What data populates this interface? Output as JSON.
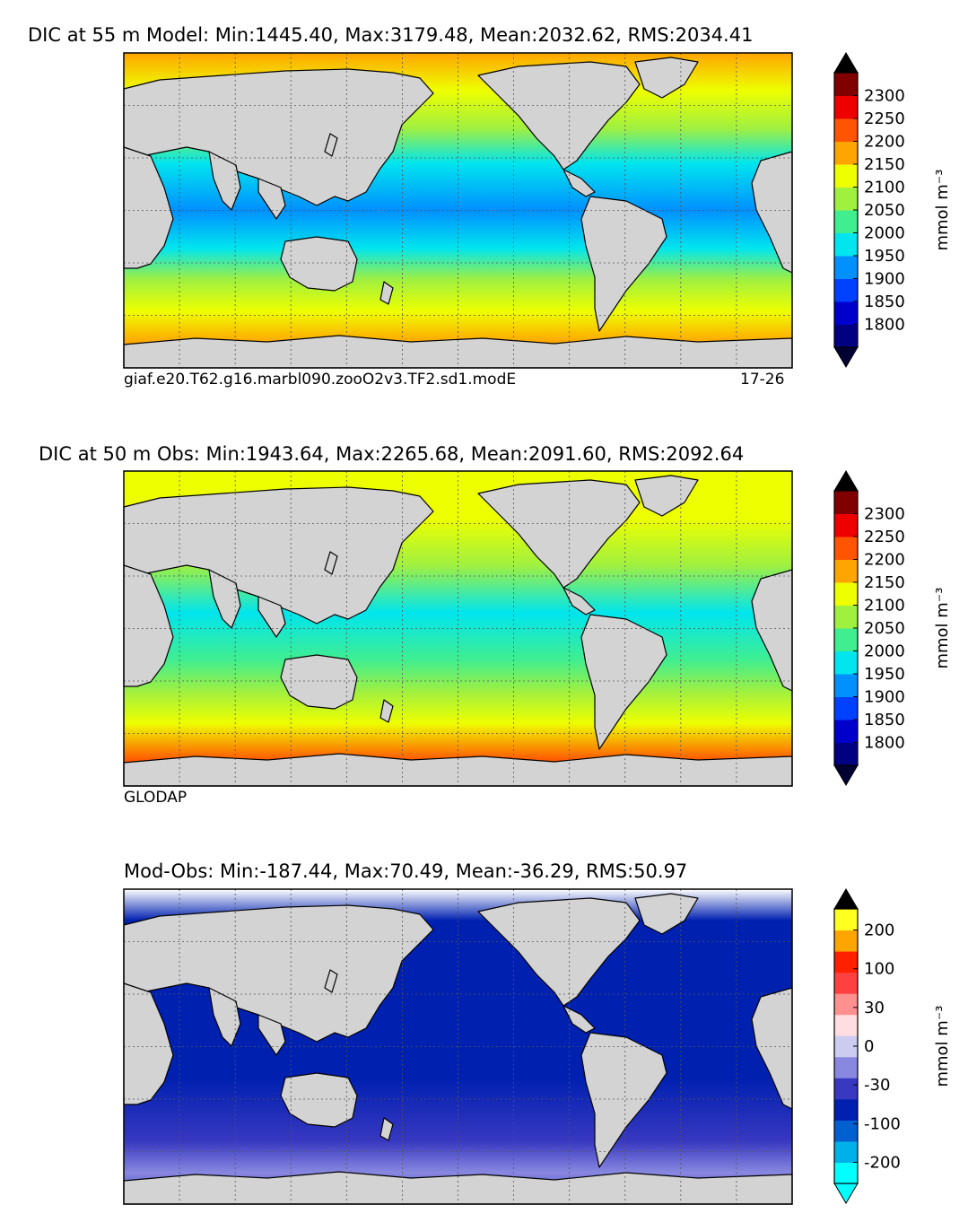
{
  "panels": [
    {
      "title": "DIC at 55 m Model: Min:1445.40, Max:3179.48, Mean:2032.62, RMS:2034.41",
      "left_label": "giaf.e20.T62.g16.marbl090.zooO2v3.TF2.sd1.modE",
      "right_label": "17-26",
      "colorbar": {
        "unit": "mmol m⁻³",
        "colors": [
          "#000080",
          "#0000cd",
          "#0040ff",
          "#0090ff",
          "#00e5ee",
          "#40ee90",
          "#a0f040",
          "#eeff00",
          "#ffa500",
          "#ff5500",
          "#ee0000",
          "#800000"
        ],
        "under_color": "#000033",
        "over_color": "#000000",
        "labels": [
          "1800",
          "1850",
          "1900",
          "1950",
          "2000",
          "2050",
          "2100",
          "2150",
          "2200",
          "2250",
          "2300"
        ]
      },
      "map_color_stops": [
        [
          "#ffa500",
          0.0
        ],
        [
          "#eeff00",
          0.12
        ],
        [
          "#a0f040",
          0.24
        ],
        [
          "#00e5ee",
          0.35
        ],
        [
          "#0090ff",
          0.5
        ],
        [
          "#00e5ee",
          0.62
        ],
        [
          "#a0f040",
          0.72
        ],
        [
          "#eeff00",
          0.82
        ],
        [
          "#ffa500",
          0.92
        ],
        [
          "#ff5500",
          1.0
        ]
      ]
    },
    {
      "title": "DIC at 50 m Obs: Min:1943.64, Max:2265.68, Mean:2091.60, RMS:2092.64",
      "left_label": "GLODAP",
      "right_label": "",
      "colorbar": {
        "unit": "mmol m⁻³",
        "colors": [
          "#000080",
          "#0000cd",
          "#0040ff",
          "#0090ff",
          "#00e5ee",
          "#40ee90",
          "#a0f040",
          "#eeff00",
          "#ffa500",
          "#ff5500",
          "#ee0000",
          "#800000"
        ],
        "under_color": "#000033",
        "over_color": "#000000",
        "labels": [
          "1800",
          "1850",
          "1900",
          "1950",
          "2000",
          "2050",
          "2100",
          "2150",
          "2200",
          "2250",
          "2300"
        ]
      },
      "map_color_stops": [
        [
          "#eeff00",
          0.0
        ],
        [
          "#eeff00",
          0.15
        ],
        [
          "#a0f040",
          0.3
        ],
        [
          "#00e5ee",
          0.45
        ],
        [
          "#40ee90",
          0.6
        ],
        [
          "#a0f040",
          0.7
        ],
        [
          "#eeff00",
          0.8
        ],
        [
          "#ff5500",
          0.92
        ],
        [
          "#ee0000",
          1.0
        ]
      ]
    },
    {
      "title": "Mod-Obs: Min:-187.44, Max:70.49, Mean:-36.29, RMS:50.97",
      "left_label": "",
      "right_label": "",
      "colorbar": {
        "unit": "mmol m⁻³",
        "colors": [
          "#00ffff",
          "#00b0e8",
          "#0060d0",
          "#0020b0",
          "#3838c0",
          "#8888e0",
          "#ccccf0",
          "#ffdde0",
          "#ff9090",
          "#ff4040",
          "#ff2000",
          "#ffa500",
          "#ffff20"
        ],
        "under_color": "#00ffff",
        "over_color": "#000000",
        "labels": [
          "-200",
          "-100",
          "-30",
          "0",
          "30",
          "100",
          "200"
        ]
      },
      "map_color_stops": [
        [
          "#ffffff",
          0.0
        ],
        [
          "#0020b0",
          0.1
        ],
        [
          "#0020b0",
          0.6
        ],
        [
          "#3838c0",
          0.8
        ],
        [
          "#8888e0",
          0.9
        ],
        [
          "#3838c0",
          1.0
        ]
      ]
    }
  ]
}
